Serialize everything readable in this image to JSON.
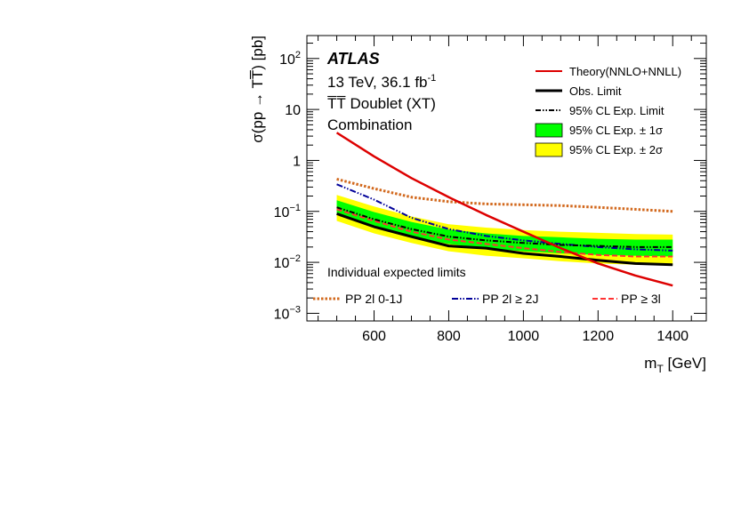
{
  "chart_data": {
    "type": "line",
    "title": "",
    "experiment": "ATLAS",
    "info_lines": [
      "13 TeV, 36.1 fb",
      "T̅T̅ Doublet (XT)",
      "Combination"
    ],
    "info_sup": "-1",
    "xlabel": "m",
    "xlabel_sub": "T",
    "xlabel_unit": "[GeV]",
    "ylabel": "σ(pp → TT̅) [pb]",
    "xlim": [
      420,
      1490
    ],
    "ylim_log10": [
      -3.15,
      2.45
    ],
    "x_ticks": [
      "600",
      "800",
      "1000",
      "1200",
      "1400"
    ],
    "y_ticks": [
      {
        "base": "10",
        "exp": "2"
      },
      {
        "base": "10",
        "exp": ""
      },
      {
        "base": "1",
        "exp": ""
      },
      {
        "base": "10",
        "exp": "−1"
      },
      {
        "base": "10",
        "exp": "−2"
      },
      {
        "base": "10",
        "exp": "−3"
      }
    ],
    "x": [
      500,
      600,
      700,
      800,
      900,
      1000,
      1100,
      1200,
      1300,
      1400
    ],
    "series": [
      {
        "name": "Theory(NNLO+NNLL)",
        "color": "#dd0000",
        "values": [
          3.5,
          1.2,
          0.45,
          0.19,
          0.085,
          0.04,
          0.019,
          0.0095,
          0.0055,
          0.0035
        ]
      },
      {
        "name": "Obs. Limit",
        "color": "#000000",
        "values": [
          0.09,
          0.05,
          0.032,
          0.021,
          0.019,
          0.015,
          0.013,
          0.011,
          0.0095,
          0.009
        ]
      },
      {
        "name": "95% CL Exp. Limit",
        "color": "#000000",
        "values": [
          0.12,
          0.07,
          0.045,
          0.032,
          0.027,
          0.024,
          0.022,
          0.021,
          0.02,
          0.02
        ]
      },
      {
        "name": "PP 2l 0-1J",
        "color": "#d2691e",
        "values": [
          0.43,
          0.28,
          0.19,
          0.155,
          0.14,
          0.135,
          0.13,
          0.12,
          0.11,
          0.1
        ]
      },
      {
        "name": "PP 2l ≥ 2J",
        "color": "#000099",
        "values": [
          0.34,
          0.17,
          0.075,
          0.045,
          0.033,
          0.027,
          0.023,
          0.02,
          0.018,
          0.017
        ]
      },
      {
        "name": "PP ≥ 3l",
        "color": "#ff3333",
        "values": [
          0.11,
          0.065,
          0.04,
          0.028,
          0.023,
          0.019,
          0.016,
          0.014,
          0.013,
          0.013
        ]
      }
    ],
    "bands": [
      {
        "name": "95% CL Exp. ± 2σ",
        "color": "#ffff00",
        "lower": [
          0.065,
          0.037,
          0.024,
          0.0165,
          0.0135,
          0.012,
          0.0105,
          0.0095,
          0.009,
          0.0088
        ],
        "upper": [
          0.21,
          0.125,
          0.08,
          0.056,
          0.048,
          0.043,
          0.04,
          0.038,
          0.036,
          0.035
        ]
      },
      {
        "name": "95% CL Exp. ± 1σ",
        "color": "#00ff00",
        "lower": [
          0.087,
          0.05,
          0.032,
          0.023,
          0.019,
          0.0165,
          0.015,
          0.014,
          0.0135,
          0.013
        ],
        "upper": [
          0.165,
          0.097,
          0.062,
          0.044,
          0.037,
          0.033,
          0.031,
          0.029,
          0.028,
          0.028
        ]
      }
    ],
    "legend": [
      {
        "label": "Theory(NNLO+NNLL)",
        "style": "theory"
      },
      {
        "label": "Obs. Limit",
        "style": "obs"
      },
      {
        "label": "95% CL Exp. Limit",
        "style": "exp"
      },
      {
        "label": "95% CL Exp. ± 1σ",
        "style": "green"
      },
      {
        "label": "95% CL Exp. ± 2σ",
        "style": "yellow"
      }
    ],
    "bottom_legend_title": "Individual expected limits",
    "bottom_legend": [
      "PP 2l 0-1J",
      "PP 2l ≥ 2J",
      "PP ≥ 3l"
    ]
  }
}
